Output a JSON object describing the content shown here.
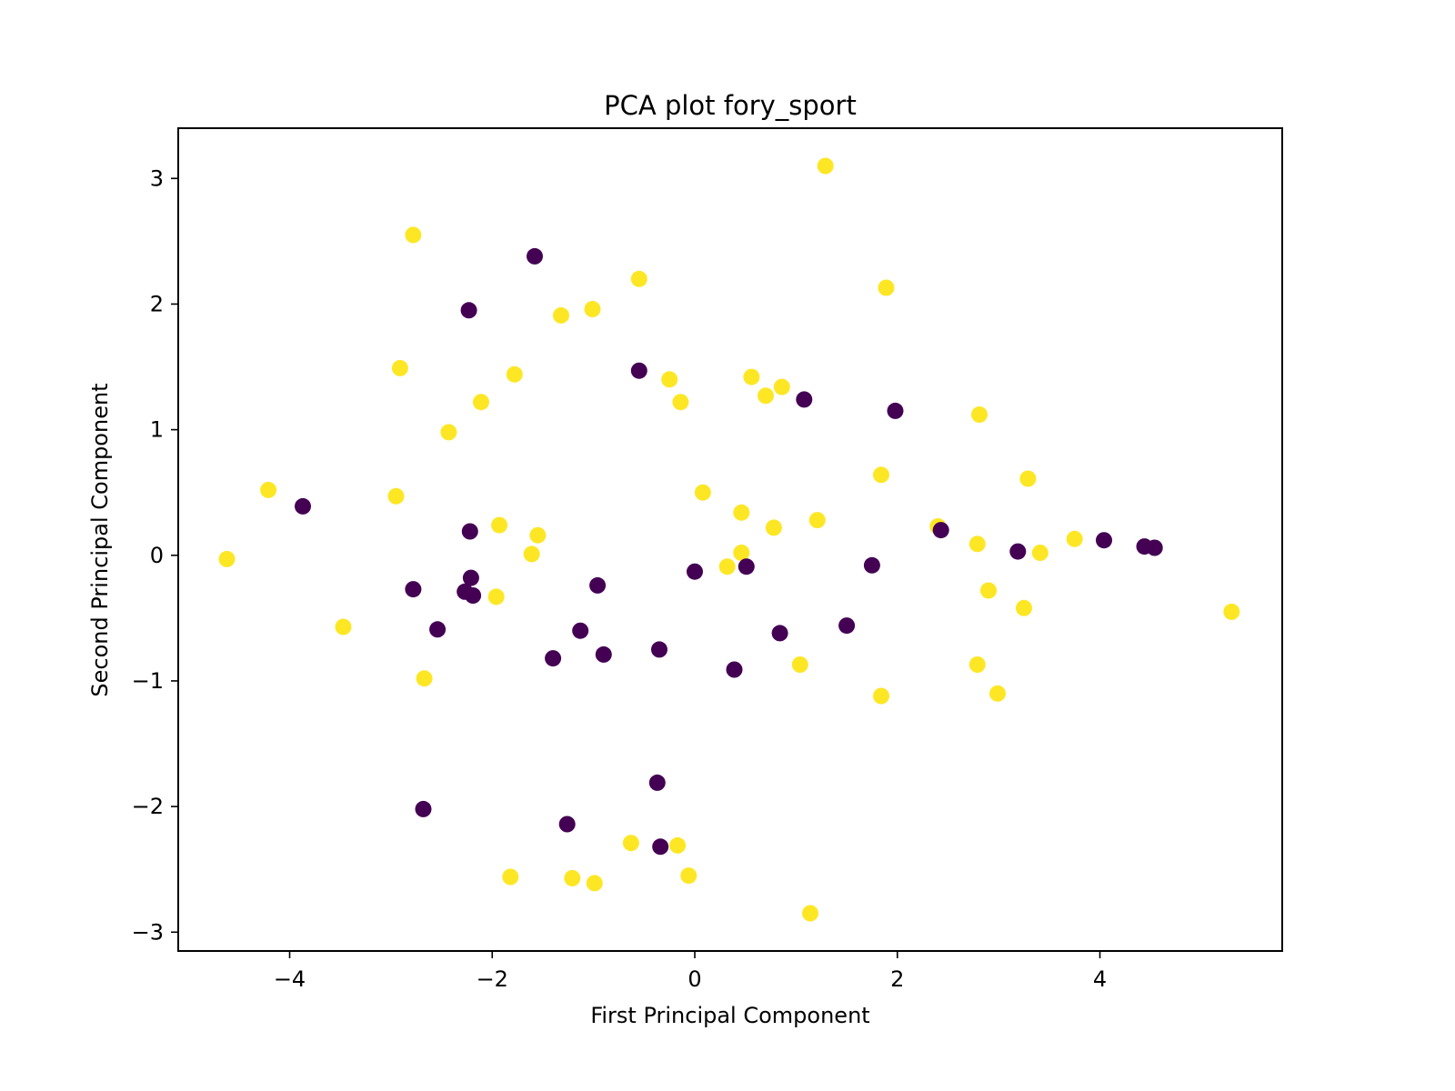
{
  "chart_data": {
    "type": "scatter",
    "title": "PCA plot fory_sport",
    "xlabel": "First Principal Component",
    "ylabel": "Second Principal Component",
    "xlim": [
      -5.1,
      5.8
    ],
    "ylim": [
      -3.15,
      3.4
    ],
    "xticks": [
      -4,
      -2,
      0,
      2,
      4
    ],
    "yticks": [
      -3,
      -2,
      -1,
      0,
      1,
      2,
      3
    ],
    "xtick_labels": [
      "−4",
      "−2",
      "0",
      "2",
      "4"
    ],
    "ytick_labels": [
      "−3",
      "−2",
      "−1",
      "0",
      "1",
      "2",
      "3"
    ],
    "grid": false,
    "legend": "none",
    "colors": {
      "class_0": "#440154",
      "class_1": "#fde725"
    },
    "series": [
      {
        "class": 1,
        "color": "#fde725",
        "points": [
          [
            -4.62,
            -0.03
          ],
          [
            -4.21,
            0.52
          ],
          [
            -3.47,
            -0.57
          ],
          [
            -2.95,
            0.47
          ],
          [
            -2.91,
            1.49
          ],
          [
            -2.78,
            2.55
          ],
          [
            -2.67,
            -0.98
          ],
          [
            -2.43,
            0.98
          ],
          [
            -2.11,
            1.22
          ],
          [
            -1.93,
            0.24
          ],
          [
            -1.96,
            -0.33
          ],
          [
            -1.78,
            1.44
          ],
          [
            -1.61,
            0.01
          ],
          [
            -1.55,
            0.16
          ],
          [
            -1.32,
            1.91
          ],
          [
            -1.01,
            1.96
          ],
          [
            -0.55,
            2.2
          ],
          [
            -0.25,
            1.4
          ],
          [
            -0.14,
            1.22
          ],
          [
            0.08,
            0.5
          ],
          [
            0.32,
            -0.09
          ],
          [
            0.46,
            0.02
          ],
          [
            0.46,
            0.34
          ],
          [
            0.56,
            1.42
          ],
          [
            0.7,
            1.27
          ],
          [
            0.78,
            0.22
          ],
          [
            0.86,
            1.34
          ],
          [
            1.21,
            0.28
          ],
          [
            1.29,
            3.1
          ],
          [
            1.84,
            0.64
          ],
          [
            1.89,
            2.13
          ],
          [
            2.4,
            0.23
          ],
          [
            2.79,
            0.09
          ],
          [
            2.81,
            1.12
          ],
          [
            2.9,
            -0.28
          ],
          [
            3.29,
            0.61
          ],
          [
            3.25,
            -0.42
          ],
          [
            3.41,
            0.02
          ],
          [
            3.75,
            0.13
          ],
          [
            5.3,
            -0.45
          ],
          [
            1.04,
            -0.87
          ],
          [
            1.84,
            -1.12
          ],
          [
            2.79,
            -0.87
          ],
          [
            2.99,
            -1.1
          ],
          [
            -1.82,
            -2.56
          ],
          [
            -1.21,
            -2.57
          ],
          [
            -0.99,
            -2.61
          ],
          [
            -0.63,
            -2.29
          ],
          [
            -0.17,
            -2.31
          ],
          [
            -0.06,
            -2.55
          ],
          [
            1.14,
            -2.85
          ]
        ]
      },
      {
        "class": 0,
        "color": "#440154",
        "points": [
          [
            -3.87,
            0.39
          ],
          [
            -2.78,
            -0.27
          ],
          [
            -2.68,
            -2.02
          ],
          [
            -2.54,
            -0.59
          ],
          [
            -2.27,
            -0.29
          ],
          [
            -2.21,
            -0.18
          ],
          [
            -2.19,
            -0.32
          ],
          [
            -2.22,
            0.19
          ],
          [
            -2.23,
            1.95
          ],
          [
            -1.58,
            2.38
          ],
          [
            -1.4,
            -0.82
          ],
          [
            -1.26,
            -2.14
          ],
          [
            -1.13,
            -0.6
          ],
          [
            -0.96,
            -0.24
          ],
          [
            -0.9,
            -0.79
          ],
          [
            -0.55,
            1.47
          ],
          [
            -0.37,
            -1.81
          ],
          [
            -0.35,
            -0.75
          ],
          [
            -0.34,
            -2.32
          ],
          [
            0.0,
            -0.13
          ],
          [
            0.39,
            -0.91
          ],
          [
            0.51,
            -0.09
          ],
          [
            0.84,
            -0.62
          ],
          [
            1.08,
            1.24
          ],
          [
            1.5,
            -0.56
          ],
          [
            1.75,
            -0.08
          ],
          [
            1.98,
            1.15
          ],
          [
            2.43,
            0.2
          ],
          [
            3.19,
            0.03
          ],
          [
            4.04,
            0.12
          ],
          [
            4.44,
            0.07
          ],
          [
            4.54,
            0.06
          ]
        ]
      }
    ]
  }
}
